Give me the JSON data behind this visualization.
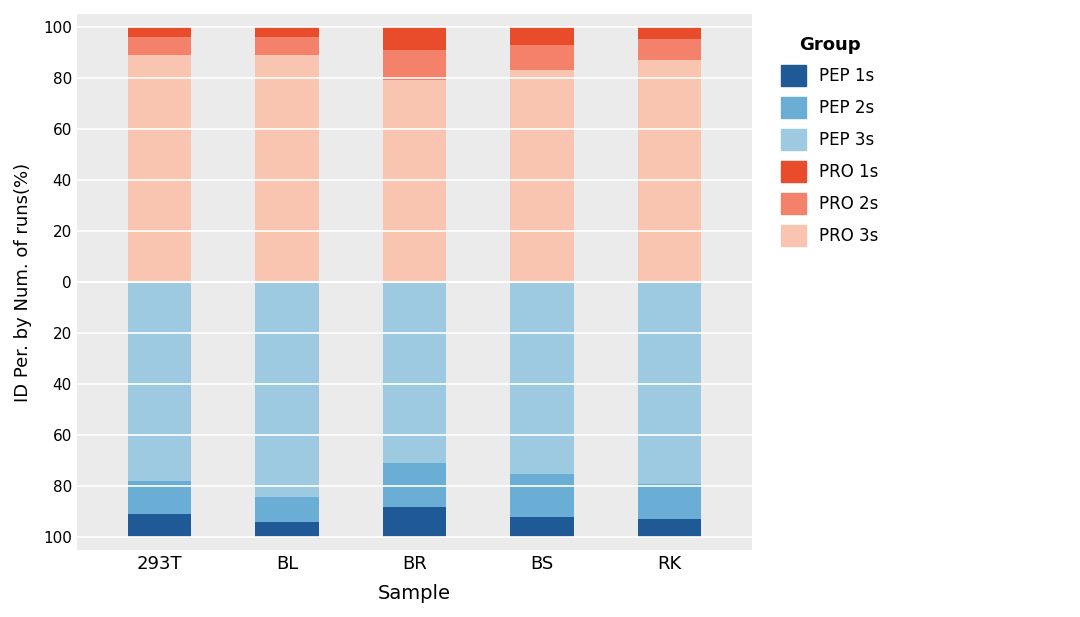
{
  "samples": [
    "293T",
    "BL",
    "BR",
    "BS",
    "RK"
  ],
  "pep1s": [
    9,
    6,
    12,
    8,
    7
  ],
  "pep2s": [
    13,
    10,
    17,
    17,
    14
  ],
  "pep3s": [
    78,
    84,
    71,
    75,
    79
  ],
  "pro1s": [
    4,
    4,
    9,
    7,
    5
  ],
  "pro2s": [
    7,
    7,
    12,
    10,
    8
  ],
  "pro3s": [
    89,
    89,
    79,
    83,
    87
  ],
  "colors": {
    "pep1s": "#1f5a96",
    "pep2s": "#6aaed6",
    "pep3s": "#9ecae1",
    "pro1s": "#e84c2b",
    "pro2s": "#f4826a",
    "pro3s": "#f9c4b0"
  },
  "ylabel": "ID Per. by Num. of runs(%)",
  "xlabel": "Sample",
  "legend_title": "Group",
  "legend_labels": [
    "PEP 1s",
    "PEP 2s",
    "PEP 3s",
    "PRO 1s",
    "PRO 2s",
    "PRO 3s"
  ],
  "plot_bg": "#ebebeb",
  "fig_bg": "#ffffff",
  "yticks": [
    -100,
    -80,
    -60,
    -40,
    -20,
    0,
    20,
    40,
    60,
    80,
    100
  ],
  "yticklabels": [
    "100",
    "80",
    "60",
    "40",
    "20",
    "0",
    "20",
    "40",
    "60",
    "80",
    "100"
  ],
  "ylim": [
    -105,
    105
  ],
  "bar_width": 0.5
}
